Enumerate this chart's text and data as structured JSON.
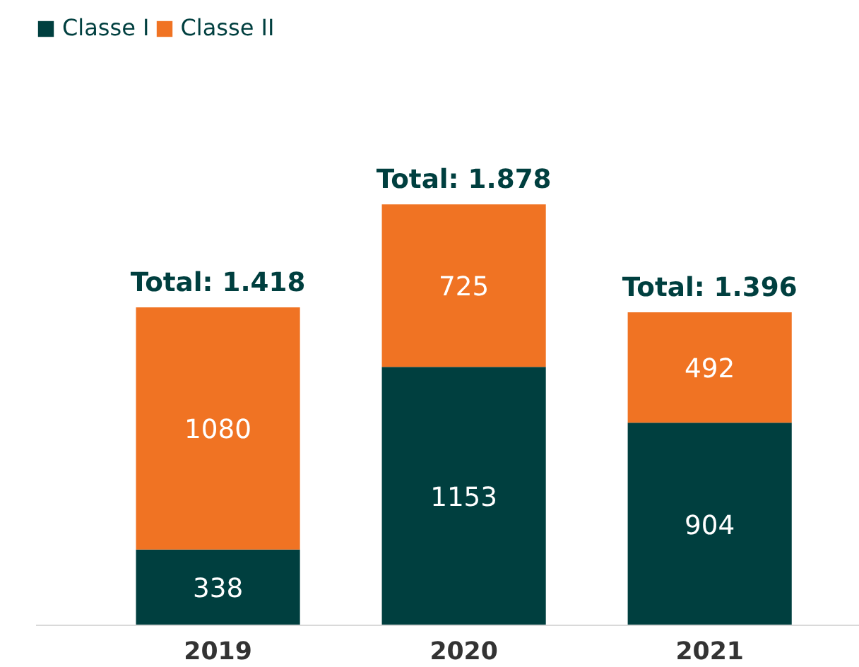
{
  "chart_data": {
    "type": "bar",
    "stacked": true,
    "categories": [
      "2019",
      "2020",
      "2021"
    ],
    "series": [
      {
        "name": "Classe I",
        "color": "#003f3f",
        "values": [
          338,
          1153,
          904
        ]
      },
      {
        "name": "Classe II",
        "color": "#f07323",
        "values": [
          1080,
          725,
          492
        ]
      }
    ],
    "totals": [
      "Total: 1.418",
      "Total: 1.878",
      "Total: 1.396"
    ],
    "data_labels": true,
    "legend": "top left",
    "grid": false
  }
}
